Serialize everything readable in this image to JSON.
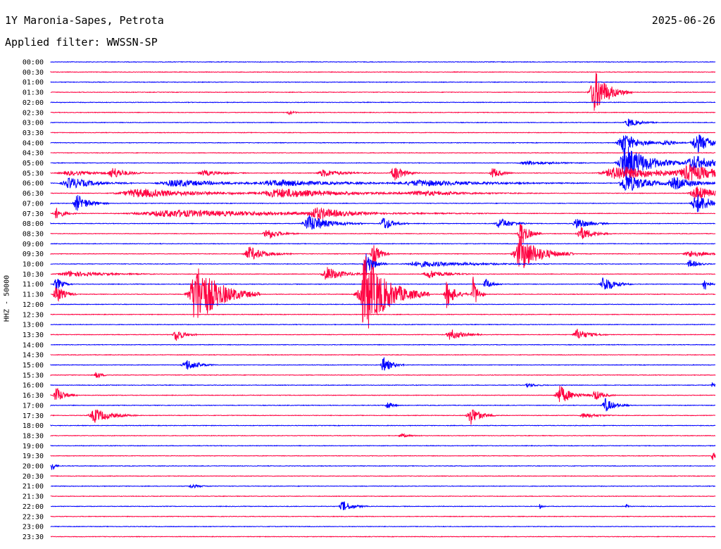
{
  "header": {
    "station": "1Y Maronia-Sapes, Petrota",
    "date": "2025-06-26",
    "filter": "Applied filter: WWSSN-SP"
  },
  "chart_data": {
    "type": "line",
    "title": "1Y Maronia-Sapes, Petrota",
    "ylabel": "HHZ - 50000",
    "traces": [
      {
        "label": "00:00",
        "color": "#0000ff",
        "bursts": []
      },
      {
        "label": "00:30",
        "color": "#ff0040",
        "bursts": []
      },
      {
        "label": "01:00",
        "color": "#0000ff",
        "bursts": []
      },
      {
        "label": "01:30",
        "color": "#ff0040",
        "bursts": [
          [
            845,
            18,
            30
          ]
        ]
      },
      {
        "label": "02:00",
        "color": "#0000ff",
        "bursts": []
      },
      {
        "label": "02:30",
        "color": "#ff0040",
        "bursts": [
          [
            410,
            6,
            3
          ]
        ]
      },
      {
        "label": "03:00",
        "color": "#0000ff",
        "bursts": [
          [
            893,
            14,
            6
          ]
        ]
      },
      {
        "label": "03:30",
        "color": "#ff0040",
        "bursts": []
      },
      {
        "label": "04:00",
        "color": "#0000ff",
        "bursts": [
          [
            885,
            20,
            14
          ],
          [
            990,
            20,
            14
          ],
          [
            945,
            10,
            6
          ]
        ]
      },
      {
        "label": "04:30",
        "color": "#ff0040",
        "bursts": []
      },
      {
        "label": "05:00",
        "color": "#0000ff",
        "bursts": [
          [
            890,
            30,
            25
          ],
          [
            985,
            25,
            12
          ],
          [
            750,
            30,
            3
          ]
        ]
      },
      {
        "label": "05:30",
        "color": "#ff0040",
        "bursts": [
          [
            160,
            15,
            8
          ],
          [
            290,
            20,
            4
          ],
          [
            460,
            25,
            5
          ],
          [
            560,
            12,
            12
          ],
          [
            700,
            10,
            8
          ],
          [
            880,
            60,
            10
          ],
          [
            980,
            40,
            10
          ],
          [
            100,
            40,
            3
          ]
        ]
      },
      {
        "label": "06:00",
        "color": "#0000ff",
        "bursts": [
          [
            100,
            30,
            8
          ],
          [
            250,
            60,
            5
          ],
          [
            400,
            80,
            4
          ],
          [
            600,
            80,
            4
          ],
          [
            890,
            25,
            14
          ],
          [
            960,
            30,
            8
          ]
        ]
      },
      {
        "label": "06:30",
        "color": "#ff0040",
        "bursts": [
          [
            200,
            80,
            6
          ],
          [
            400,
            80,
            6
          ],
          [
            600,
            60,
            3
          ],
          [
            990,
            25,
            10
          ]
        ]
      },
      {
        "label": "07:00",
        "color": "#0000ff",
        "bursts": [
          [
            110,
            15,
            12
          ],
          [
            990,
            20,
            14
          ]
        ]
      },
      {
        "label": "07:30",
        "color": "#ff0040",
        "bursts": [
          [
            250,
            150,
            5
          ],
          [
            450,
            30,
            8
          ],
          [
            80,
            10,
            8
          ]
        ]
      },
      {
        "label": "08:00",
        "color": "#0000ff",
        "bursts": [
          [
            440,
            25,
            12
          ],
          [
            545,
            12,
            10
          ],
          [
            710,
            15,
            8
          ],
          [
            820,
            15,
            8
          ]
        ]
      },
      {
        "label": "08:30",
        "color": "#ff0040",
        "bursts": [
          [
            380,
            15,
            8
          ],
          [
            825,
            15,
            10
          ],
          [
            740,
            10,
            18
          ]
        ]
      },
      {
        "label": "09:00",
        "color": "#0000ff",
        "bursts": []
      },
      {
        "label": "09:30",
        "color": "#ff0040",
        "bursts": [
          [
            355,
            20,
            10
          ],
          [
            740,
            25,
            25
          ],
          [
            530,
            8,
            18
          ],
          [
            980,
            20,
            5
          ]
        ]
      },
      {
        "label": "10:00",
        "color": "#0000ff",
        "bursts": [
          [
            520,
            10,
            18
          ],
          [
            600,
            60,
            4
          ],
          [
            980,
            10,
            6
          ]
        ]
      },
      {
        "label": "10:30",
        "color": "#ff0040",
        "bursts": [
          [
            465,
            20,
            10
          ],
          [
            610,
            20,
            6
          ],
          [
            100,
            40,
            4
          ]
        ]
      },
      {
        "label": "11:00",
        "color": "#0000ff",
        "bursts": [
          [
            858,
            14,
            12
          ],
          [
            1000,
            5,
            12
          ],
          [
            690,
            8,
            8
          ],
          [
            80,
            8,
            10
          ]
        ]
      },
      {
        "label": "11:30",
        "color": "#ff0040",
        "bursts": [
          [
            280,
            30,
            45
          ],
          [
            520,
            30,
            55
          ],
          [
            635,
            10,
            20
          ],
          [
            80,
            10,
            14
          ],
          [
            672,
            6,
            25
          ]
        ]
      },
      {
        "label": "12:00",
        "color": "#0000ff",
        "bursts": []
      },
      {
        "label": "12:30",
        "color": "#ff0040",
        "bursts": []
      },
      {
        "label": "13:00",
        "color": "#0000ff",
        "bursts": []
      },
      {
        "label": "13:30",
        "color": "#ff0040",
        "bursts": [
          [
            250,
            10,
            10
          ],
          [
            640,
            15,
            8
          ],
          [
            820,
            15,
            8
          ]
        ]
      },
      {
        "label": "14:00",
        "color": "#0000ff",
        "bursts": []
      },
      {
        "label": "14:30",
        "color": "#ff0040",
        "bursts": []
      },
      {
        "label": "15:00",
        "color": "#0000ff",
        "bursts": [
          [
            265,
            15,
            8
          ],
          [
            545,
            10,
            12
          ]
        ]
      },
      {
        "label": "15:30",
        "color": "#ff0040",
        "bursts": [
          [
            137,
            6,
            6
          ]
        ]
      },
      {
        "label": "16:00",
        "color": "#0000ff",
        "bursts": [
          [
            750,
            10,
            3
          ],
          [
            1012,
            5,
            4
          ]
        ]
      },
      {
        "label": "16:30",
        "color": "#ff0040",
        "bursts": [
          [
            80,
            10,
            12
          ],
          [
            795,
            15,
            14
          ],
          [
            845,
            10,
            8
          ]
        ]
      },
      {
        "label": "17:00",
        "color": "#0000ff",
        "bursts": [
          [
            860,
            12,
            10
          ],
          [
            550,
            6,
            6
          ]
        ]
      },
      {
        "label": "17:30",
        "color": "#ff0040",
        "bursts": [
          [
            135,
            20,
            10
          ],
          [
            668,
            12,
            14
          ],
          [
            830,
            15,
            4
          ]
        ]
      },
      {
        "label": "18:00",
        "color": "#0000ff",
        "bursts": []
      },
      {
        "label": "18:30",
        "color": "#ff0040",
        "bursts": [
          [
            570,
            10,
            3
          ]
        ]
      },
      {
        "label": "19:00",
        "color": "#0000ff",
        "bursts": []
      },
      {
        "label": "19:30",
        "color": "#ff0040",
        "bursts": [
          [
            1012,
            5,
            6
          ]
        ]
      },
      {
        "label": "20:00",
        "color": "#0000ff",
        "bursts": [
          [
            74,
            4,
            8
          ]
        ]
      },
      {
        "label": "20:30",
        "color": "#ff0040",
        "bursts": []
      },
      {
        "label": "21:00",
        "color": "#0000ff",
        "bursts": [
          [
            272,
            10,
            3
          ]
        ]
      },
      {
        "label": "21:30",
        "color": "#ff0040",
        "bursts": []
      },
      {
        "label": "22:00",
        "color": "#0000ff",
        "bursts": [
          [
            487,
            12,
            8
          ],
          [
            767,
            3,
            4
          ],
          [
            890,
            3,
            4
          ]
        ]
      },
      {
        "label": "22:30",
        "color": "#ff0040",
        "bursts": []
      },
      {
        "label": "23:00",
        "color": "#0000ff",
        "bursts": []
      },
      {
        "label": "23:30",
        "color": "#ff0040",
        "bursts": []
      }
    ]
  }
}
